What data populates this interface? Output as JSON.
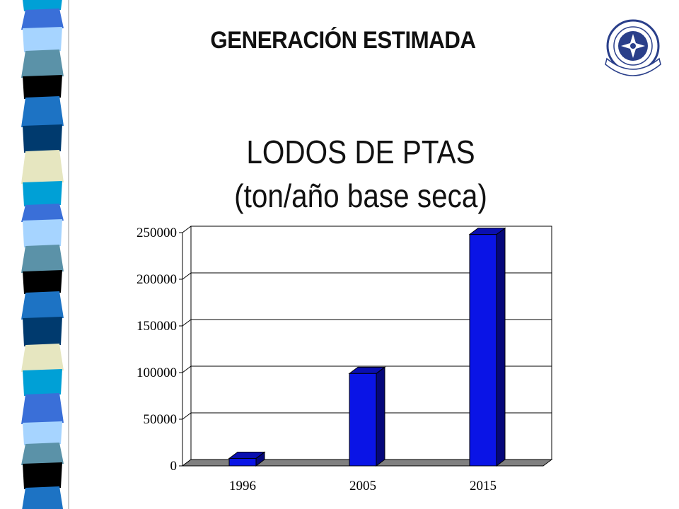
{
  "slide": {
    "header_title": "GENERACIÓN ESTIMADA",
    "logo_name": "university-seal"
  },
  "colors": {
    "bar_front": "#0a14e6",
    "bar_top": "#0a0fb0",
    "bar_side": "#05077a",
    "floor": "#808080",
    "gridline": "#000000"
  },
  "chart_data": {
    "type": "bar",
    "title_lines": [
      "LODOS DE PTAS",
      "(ton/año base seca)"
    ],
    "categories": [
      "1996",
      "2005",
      "2015"
    ],
    "values": [
      8000,
      99000,
      248000
    ],
    "yticks": [
      "0",
      "50000",
      "100000",
      "150000",
      "200000",
      "250000"
    ],
    "ylim": [
      0,
      250000
    ],
    "grid": true,
    "legend": false,
    "three_d": true
  }
}
